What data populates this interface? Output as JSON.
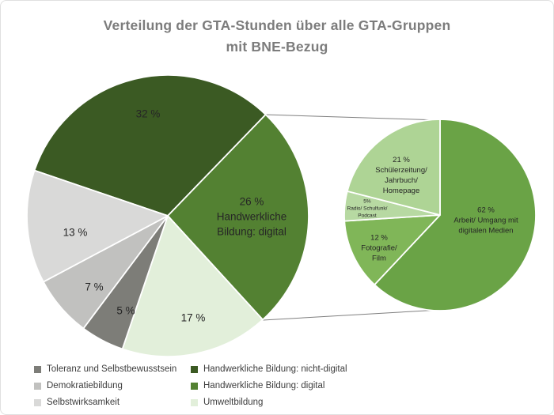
{
  "title": {
    "text": "Verteilung der GTA-Stunden über alle GTA-Gruppen\nmit BNE-Bezug",
    "color": "#7c7c7c"
  },
  "chart_data": [
    {
      "type": "pie",
      "name": "main-pie",
      "title": "Verteilung der GTA-Stunden über alle GTA-Gruppen mit BNE-Bezug",
      "unit": "%",
      "start_angle_deg": -71.2,
      "slices": [
        {
          "label": "Handwerkliche Bildung: nicht-digital",
          "value": 32,
          "color": "#3b5a23",
          "display_label": "32 %"
        },
        {
          "label": "Handwerkliche Bildung: digital",
          "value": 26,
          "color": "#538132",
          "display_label": "26 %\nHandwerkliche\nBildung: digital"
        },
        {
          "label": "Umweltbildung",
          "value": 17,
          "color": "#e2efda",
          "display_label": "17 %"
        },
        {
          "label": "Toleranz und Selbstbewusstsein",
          "value": 5,
          "color": "#7d7d78",
          "display_label": "5 %"
        },
        {
          "label": "Demokratiebildung",
          "value": 7,
          "color": "#c1c1bf",
          "display_label": "7 %"
        },
        {
          "label": "Selbstwirksamkeit",
          "value": 13,
          "color": "#d9d9d8",
          "display_label": "13 %"
        }
      ]
    },
    {
      "type": "pie",
      "name": "breakout-pie-digital",
      "unit": "%",
      "start_angle_deg": 0,
      "slices": [
        {
          "label": "Arbeit/ Umgang mit digitalen Medien",
          "value": 62,
          "color": "#6aa346",
          "display_label": "62 %\nArbeit/ Umgang mit\ndigitalen Medien"
        },
        {
          "label": "Fotografie/ Film",
          "value": 12,
          "color": "#80b658",
          "display_label": "12 %\nFotografie/\nFilm"
        },
        {
          "label": "Radio/ Schulfunk/ Podcast",
          "value": 5,
          "color": "#b7d9a2",
          "display_label": "5%\nRadio/ Schulfunk/\nPodcast"
        },
        {
          "label": "Schülerzeitung/ Jahrbuch/ Homepage",
          "value": 21,
          "color": "#aed495",
          "display_label": "21 %\nSchülerzeitung/\nJahrbuch/\nHomepage"
        }
      ]
    }
  ],
  "legend": {
    "columns": [
      {
        "items": [
          {
            "label": "Toleranz und Selbstbewusstsein",
            "color": "#7d7d78"
          },
          {
            "label": "Demokratiebildung",
            "color": "#c1c1bf"
          },
          {
            "label": "Selbstwirksamkeit",
            "color": "#d9d9d8"
          }
        ]
      },
      {
        "items": [
          {
            "label": "Handwerkliche Bildung: nicht-digital",
            "color": "#3b5a23"
          },
          {
            "label": "Handwerkliche Bildung: digital",
            "color": "#538132"
          },
          {
            "label": "Umweltbildung",
            "color": "#e2efda"
          }
        ]
      }
    ]
  },
  "connector_color": "#7f7f7f"
}
